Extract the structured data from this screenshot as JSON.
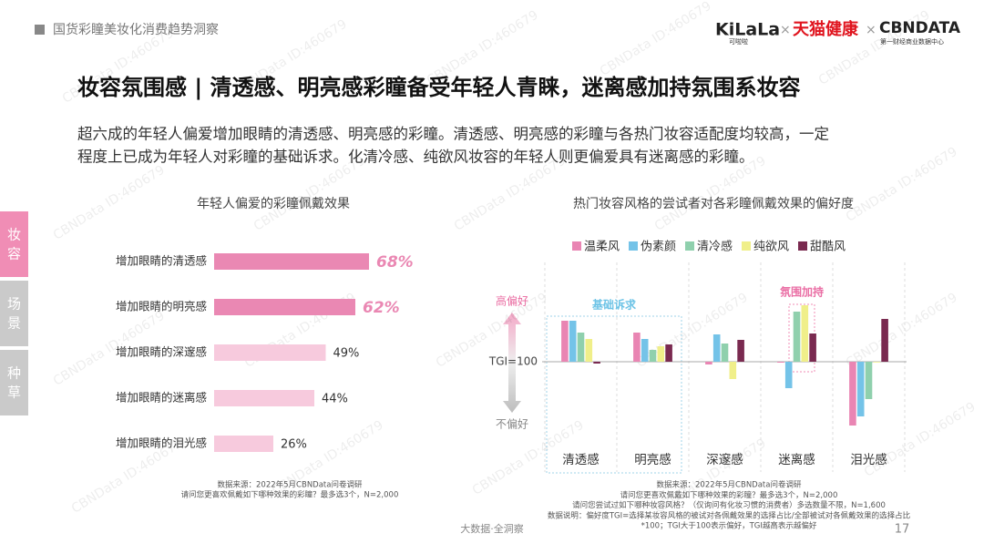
{
  "header": {
    "section": "国货彩瞳美妆化消费趋势洞察",
    "logo_kilala": "KiLaLa",
    "logo_kilala_cn": "可啦啦",
    "separator": "×",
    "logo_tmall": "天猫健康",
    "logo_cbn": "CBNDATA",
    "logo_cbn_cn": "第一财经商业数据中心"
  },
  "sidebar": [
    "妆容",
    "场景",
    "种草"
  ],
  "title": "妆容氛围感 | 清透感、明亮感彩瞳备受年轻人青睐，迷离感加持氛围系妆容",
  "body": [
    "超六成的年轻人偏爱增加眼睛的清透感、明亮感的彩瞳。清透感、明亮感的彩瞳与各热门妆容适配度均较高，一定",
    "程度上已成为年轻人对彩瞳的基础诉求。化清冷感、纯欲风妆容的年轻人则更偏爱具有迷离感的彩瞳。"
  ],
  "watermark": "CBNData ID:460679",
  "footer": {
    "slogan": "大数据·全洞察",
    "page": "17"
  },
  "chart_data": [
    {
      "type": "hbar",
      "title": "年轻人偏爱的彩瞳佩戴效果",
      "categories": [
        "增加眼睛的清透感",
        "增加眼睛的明亮感",
        "增加眼睛的深邃感",
        "增加眼睛的迷离感",
        "增加眼睛的泪光感"
      ],
      "values": [
        68,
        62,
        49,
        44,
        26
      ],
      "value_labels": [
        "68%",
        "62%",
        "49%",
        "44%",
        "26%"
      ],
      "colors": [
        "#ea88b3",
        "#ea88b3",
        "#f7cadd",
        "#f7cadd",
        "#f7cadd"
      ],
      "notes": [
        "数据来源：2022年5月CBNData问卷调研",
        "请问您更喜欢佩戴如下哪种效果的彩瞳？最多选3个，N=2,000"
      ]
    },
    {
      "type": "bar",
      "title": "热门妆容风格的尝试者对各彩瞳佩戴效果的偏好度",
      "categories": [
        "清透感",
        "明亮感",
        "深邃感",
        "迷离感",
        "泪光感"
      ],
      "series": [
        {
          "name": "温柔风",
          "color": "#e985b3",
          "values": [
            145,
            132,
            97,
            99,
            30
          ]
        },
        {
          "name": "伪素颜",
          "color": "#74c3e8",
          "values": [
            145,
            125,
            130,
            71,
            40
          ]
        },
        {
          "name": "清冷感",
          "color": "#8fd0ad",
          "values": [
            132,
            113,
            120,
            155,
            59
          ]
        },
        {
          "name": "纯欲风",
          "color": "#f0ef8a",
          "values": [
            125,
            117,
            81,
            162,
            100
          ]
        },
        {
          "name": "甜酷风",
          "color": "#7a2a50",
          "values": [
            98,
            119,
            124,
            131,
            147
          ]
        }
      ],
      "ylim": [
        20,
        180
      ],
      "baseline": {
        "value": 100,
        "label": "TGI=100"
      },
      "annotations": {
        "high": "高偏好",
        "low": "不偏好",
        "basic": "基础诉求",
        "atmosphere": "氛围加持"
      },
      "notes": [
        "数据来源：2022年5月CBNData问卷调研",
        "请问您更喜欢佩戴如下哪种效果的彩瞳？最多选3个，N=2,000",
        "请问您尝试过如下哪种妆容风格？（仅询问有化妆习惯的消费者）多选数量不限，N=1,600",
        "数据说明：偏好度TGI=选择某妆容风格的被试对各佩戴效果的选择占比/全部被试对各佩戴效果的选择占比",
        "*100；TGI大于100表示偏好，TGI越高表示越偏好"
      ]
    }
  ]
}
